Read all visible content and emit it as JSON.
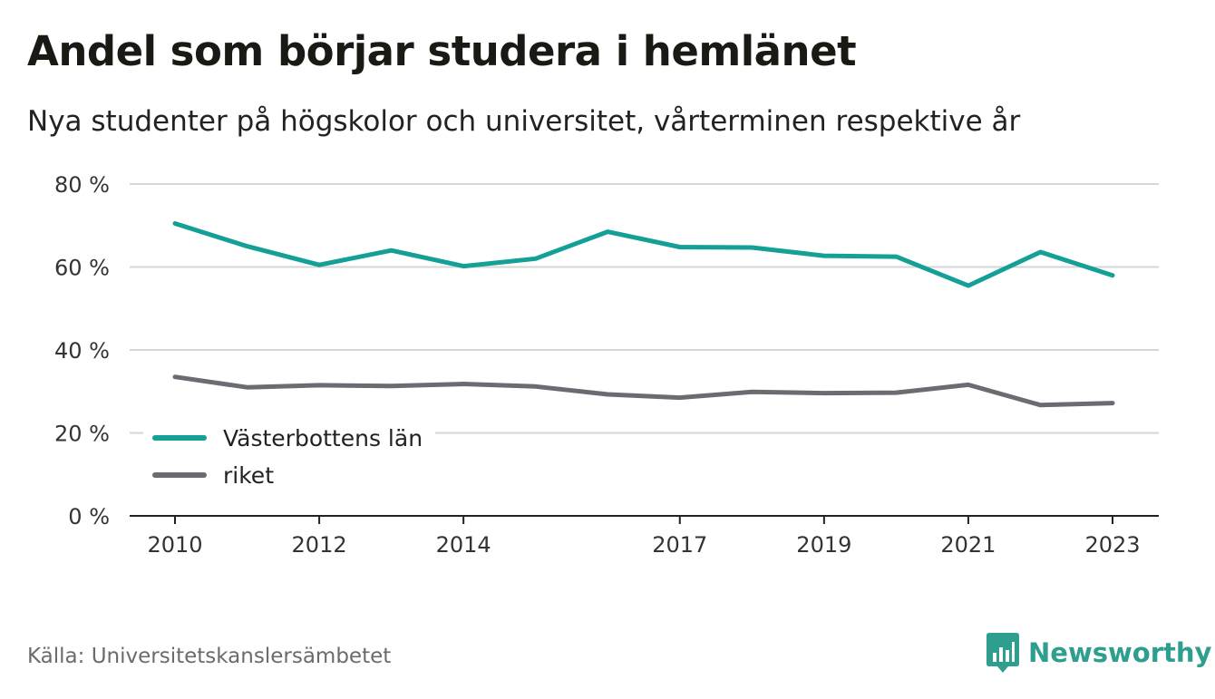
{
  "title": "Andel som börjar studera i hemlänet",
  "subtitle": "Nya studenter på högskolor och universitet, vårterminen respektive år",
  "source": "Källa: Universitetskanslersämbetet",
  "brand": "Newsworthy",
  "colors": {
    "series_1": "#14a096",
    "series_2": "#6c6b72",
    "grid": "#d6d6d6",
    "axis": "#222222",
    "brand": "#2e9e8f"
  },
  "chart_data": {
    "type": "line",
    "x": [
      2010,
      2011,
      2012,
      2013,
      2014,
      2015,
      2016,
      2017,
      2018,
      2019,
      2020,
      2021,
      2022,
      2023
    ],
    "x_ticks": [
      2010,
      2012,
      2014,
      2017,
      2019,
      2021,
      2023
    ],
    "y_ticks": [
      {
        "value": 0,
        "label": "0 %"
      },
      {
        "value": 20,
        "label": "20 %"
      },
      {
        "value": 40,
        "label": "40 %"
      },
      {
        "value": 60,
        "label": "60 %"
      },
      {
        "value": 80,
        "label": "80 %"
      }
    ],
    "ylim": [
      0,
      80
    ],
    "grid": true,
    "legend_position": "bottom-left",
    "series": [
      {
        "name": "Västerbottens län",
        "values": [
          70.5,
          65.0,
          60.5,
          64.0,
          60.2,
          62.0,
          68.5,
          64.8,
          64.7,
          62.7,
          62.5,
          55.5,
          63.6,
          58.0
        ]
      },
      {
        "name": "riket",
        "values": [
          33.5,
          31.0,
          31.5,
          31.3,
          31.8,
          31.2,
          29.3,
          28.5,
          29.9,
          29.6,
          29.7,
          31.6,
          26.7,
          27.2
        ]
      }
    ]
  }
}
